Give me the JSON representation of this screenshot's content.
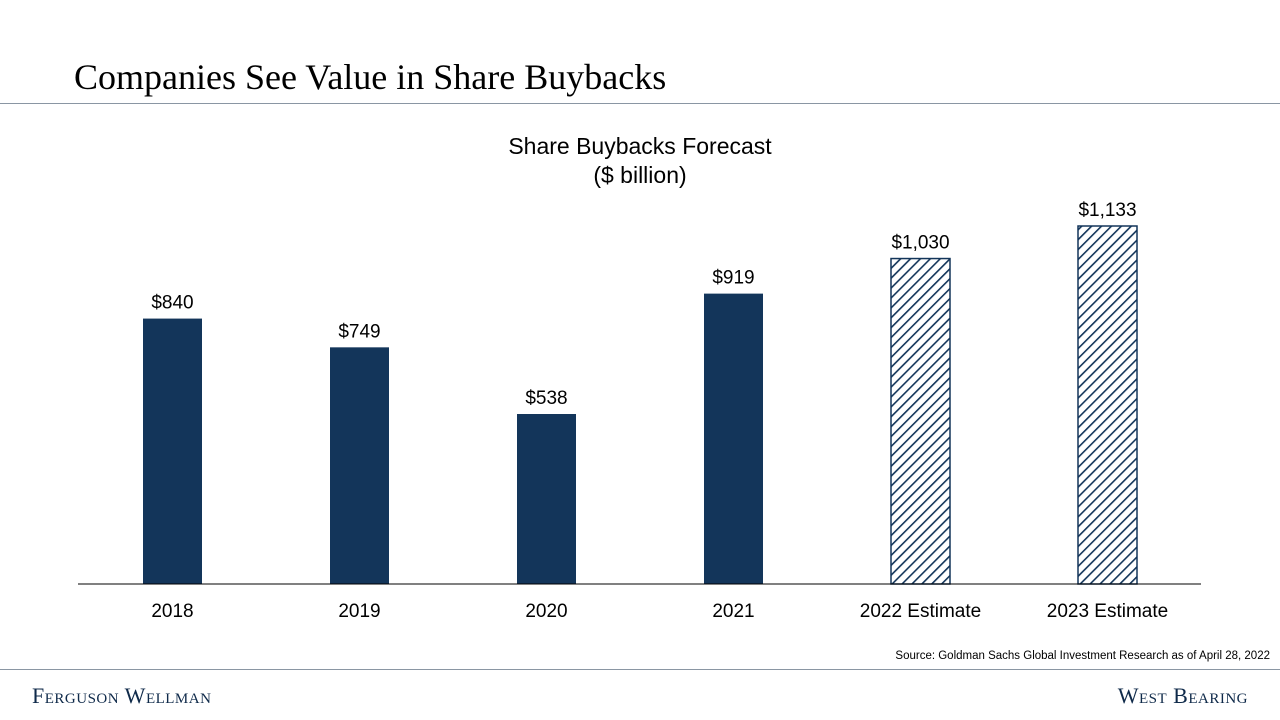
{
  "slide": {
    "title": "Companies See Value in Share Buybacks",
    "source": "Source: Goldman Sachs Global Investment Research as of April 28, 2022"
  },
  "footer": {
    "left_brand": "Ferguson Wellman",
    "right_brand": "West Bearing"
  },
  "colors": {
    "bar_fill": "#13355a",
    "accent_rule": "#8a96a3",
    "brand": "#0f2a4a"
  },
  "chart_data": {
    "type": "bar",
    "title": "Share Buybacks Forecast",
    "subtitle": "($ billion)",
    "categories": [
      "2018",
      "2019",
      "2020",
      "2021",
      "2022 Estimate",
      "2023 Estimate"
    ],
    "values": [
      840,
      749,
      538,
      919,
      1030,
      1133
    ],
    "data_labels": [
      "$840",
      "$749",
      "$538",
      "$919",
      "$1,030",
      "$1,133"
    ],
    "estimate": [
      false,
      false,
      false,
      false,
      true,
      true
    ],
    "ylim": [
      0,
      1133
    ],
    "xlabel": "",
    "ylabel": "",
    "grid": false,
    "legend": "none"
  }
}
